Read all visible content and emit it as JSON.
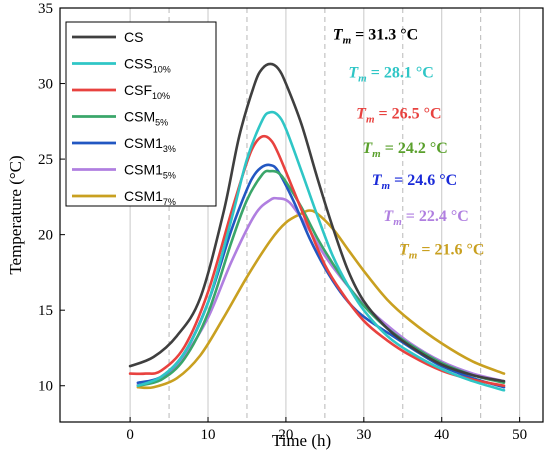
{
  "chart_data": {
    "type": "line",
    "title": "",
    "xlabel": "Time (h)",
    "ylabel": "Temperature (°C)",
    "xlim": [
      -9,
      53
    ],
    "ylim": [
      7.6,
      35
    ],
    "xticks": [
      0,
      10,
      20,
      30,
      40,
      50
    ],
    "yticks": [
      10,
      15,
      20,
      25,
      30,
      35
    ],
    "minor_grid_x": [
      5,
      15,
      25,
      35,
      45
    ],
    "grid": true,
    "legend_position": "top-left",
    "series": [
      {
        "name": "CS",
        "label_main": "CS",
        "label_sub": "",
        "color": "#3f3f3f",
        "x": [
          0,
          3,
          6,
          9,
          12,
          14,
          16,
          17,
          18,
          19,
          20,
          22,
          24,
          26,
          28,
          30,
          33,
          36,
          40,
          44,
          48
        ],
        "y": [
          11.3,
          11.9,
          13.3,
          15.8,
          21.5,
          26.5,
          30.0,
          31.0,
          31.3,
          31.0,
          30.0,
          27.3,
          23.8,
          20.5,
          17.6,
          15.6,
          13.8,
          12.6,
          11.4,
          10.7,
          10.3
        ]
      },
      {
        "name": "CSS10%",
        "label_main": "CSS",
        "label_sub": "10%",
        "color": "#2fc6c6",
        "x": [
          1,
          4,
          7,
          10,
          13,
          15,
          17,
          18,
          19,
          20,
          22,
          24,
          26,
          28,
          30,
          33,
          36,
          40,
          44,
          48
        ],
        "y": [
          10.0,
          10.6,
          12.2,
          15.5,
          21.0,
          25.0,
          27.6,
          28.1,
          27.9,
          27.0,
          24.2,
          21.3,
          18.6,
          16.6,
          15.0,
          13.3,
          12.2,
          11.1,
          10.3,
          9.7
        ]
      },
      {
        "name": "CSF10%",
        "label_main": "CSF",
        "label_sub": "10%",
        "color": "#e8423f",
        "x": [
          0,
          2,
          4,
          7,
          10,
          13,
          15,
          16,
          17,
          18,
          19,
          21,
          23,
          25,
          27,
          30,
          33,
          36,
          40,
          44,
          48
        ],
        "y": [
          10.8,
          10.8,
          11.0,
          12.6,
          16.2,
          21.5,
          24.8,
          26.0,
          26.5,
          26.3,
          25.4,
          22.9,
          20.4,
          18.0,
          16.3,
          14.3,
          13.0,
          12.0,
          11.0,
          10.4,
          10.0
        ]
      },
      {
        "name": "CSM5%",
        "label_main": "CSM",
        "label_sub": "5%",
        "color": "#3aa66a",
        "x": [
          1,
          4,
          7,
          10,
          13,
          15,
          17,
          18,
          19,
          20,
          22,
          24,
          26,
          28,
          30,
          33,
          36,
          40,
          44,
          48
        ],
        "y": [
          10.0,
          10.4,
          11.8,
          14.8,
          19.5,
          22.3,
          24.0,
          24.2,
          24.1,
          23.5,
          21.8,
          19.8,
          18.1,
          16.6,
          15.3,
          13.8,
          12.7,
          11.5,
          10.7,
          10.2
        ]
      },
      {
        "name": "CSM13%",
        "label_main": "CSM1",
        "label_sub": "3%",
        "color": "#2257c2",
        "x": [
          1,
          4,
          7,
          10,
          13,
          15,
          16,
          17,
          18,
          19,
          21,
          23,
          25,
          27,
          29,
          31,
          34,
          37,
          40,
          44,
          48
        ],
        "y": [
          10.2,
          10.6,
          12.2,
          15.5,
          20.3,
          23.0,
          24.0,
          24.5,
          24.6,
          24.2,
          22.2,
          19.8,
          17.8,
          16.2,
          15.0,
          14.2,
          13.2,
          12.2,
          11.3,
          10.5,
          9.9
        ]
      },
      {
        "name": "CSM15%",
        "label_main": "CSM1",
        "label_sub": "5%",
        "color": "#b07fe0",
        "x": [
          1,
          4,
          7,
          10,
          13,
          16,
          18,
          19,
          20,
          21,
          23,
          25,
          27,
          30,
          33,
          36,
          40,
          44,
          48
        ],
        "y": [
          10.1,
          10.5,
          12.0,
          14.5,
          18.2,
          21.3,
          22.3,
          22.4,
          22.3,
          21.8,
          20.3,
          18.6,
          17.2,
          15.4,
          14.0,
          12.8,
          11.6,
          10.8,
          10.3
        ]
      },
      {
        "name": "CSM17%",
        "label_main": "CSM1",
        "label_sub": "7%",
        "color": "#c9a020",
        "x": [
          1,
          3,
          6,
          9,
          12,
          15,
          18,
          20,
          22,
          23,
          24,
          26,
          28,
          30,
          33,
          36,
          40,
          44,
          48
        ],
        "y": [
          9.9,
          9.9,
          10.5,
          12.0,
          14.5,
          17.2,
          19.6,
          20.8,
          21.4,
          21.6,
          21.4,
          20.4,
          19.0,
          17.6,
          15.7,
          14.3,
          12.8,
          11.6,
          10.8
        ]
      }
    ],
    "annotations": [
      {
        "prefix": "T",
        "sub": "m",
        "value": " = 31.3 °C",
        "color": "#000000",
        "x": 31.5,
        "y": 32.9
      },
      {
        "prefix": "T",
        "sub": "m",
        "value": " = 28.1 °C",
        "color": "#2fc6c6",
        "x": 33.5,
        "y": 30.4
      },
      {
        "prefix": "T",
        "sub": "m",
        "value": " = 26.5 °C",
        "color": "#e8423f",
        "x": 34.5,
        "y": 27.7
      },
      {
        "prefix": "T",
        "sub": "m",
        "value": " = 24.2 °C",
        "color": "#5aa02c",
        "x": 35.3,
        "y": 25.4
      },
      {
        "prefix": "T",
        "sub": "m",
        "value": " = 24.6 °C",
        "color": "#1a2ad8",
        "x": 36.5,
        "y": 23.3
      },
      {
        "prefix": "T",
        "sub": "m",
        "value": " = 22.4 °C",
        "color": "#b07fe0",
        "x": 38.0,
        "y": 20.9
      },
      {
        "prefix": "T",
        "sub": "m",
        "value": " = 21.6 °C",
        "color": "#c9a020",
        "x": 40.0,
        "y": 18.7
      }
    ]
  }
}
